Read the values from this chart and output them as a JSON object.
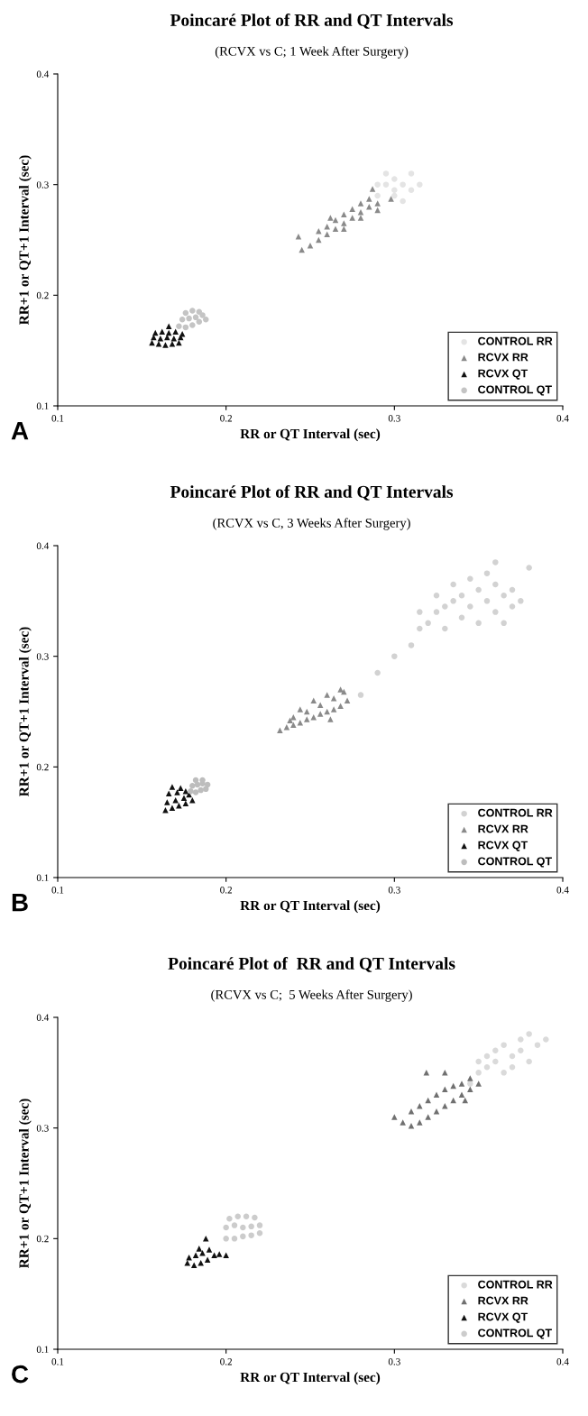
{
  "chart_data": [
    {
      "type": "scatter",
      "title": "Poincaré Plot of RR and QT Intervals",
      "subtitle": "(RCVX vs C; 1 Week After Surgery)",
      "xlabel": "RR or QT Interval (sec)",
      "ylabel": "RR+1 or QT+1 Interval (sec)",
      "xlim": [
        0.1,
        0.4
      ],
      "ylim": [
        0.1,
        0.4
      ],
      "xticks": [
        0.1,
        0.2,
        0.3,
        0.4
      ],
      "yticks": [
        0.1,
        0.2,
        0.3,
        0.4
      ],
      "legend": "bottom right",
      "grid": false,
      "annotations": [
        "A"
      ],
      "series": [
        {
          "name": "CONTROL RR",
          "color": "#e4e4e4",
          "marker": "circle",
          "x": [
            0.315,
            0.29,
            0.295,
            0.3,
            0.305,
            0.31,
            0.3,
            0.31,
            0.295,
            0.305,
            0.29,
            0.3
          ],
          "values": [
            0.3,
            0.29,
            0.3,
            0.305,
            0.3,
            0.31,
            0.295,
            0.295,
            0.31,
            0.285,
            0.3,
            0.29
          ]
        },
        {
          "name": "RCVX RR",
          "color": "#8a8a8a",
          "marker": "triangle",
          "x": [
            0.245,
            0.25,
            0.255,
            0.26,
            0.265,
            0.27,
            0.275,
            0.28,
            0.285,
            0.29,
            0.26,
            0.265,
            0.27,
            0.275,
            0.28,
            0.285,
            0.27,
            0.28,
            0.29,
            0.243,
            0.298,
            0.287,
            0.255,
            0.262
          ],
          "values": [
            0.241,
            0.245,
            0.25,
            0.255,
            0.26,
            0.265,
            0.27,
            0.275,
            0.28,
            0.283,
            0.262,
            0.268,
            0.273,
            0.278,
            0.283,
            0.287,
            0.26,
            0.27,
            0.277,
            0.253,
            0.287,
            0.296,
            0.258,
            0.27
          ]
        },
        {
          "name": "RCVX QT",
          "color": "#111111",
          "marker": "triangle",
          "x": [
            0.156,
            0.16,
            0.164,
            0.168,
            0.172,
            0.157,
            0.161,
            0.165,
            0.169,
            0.173,
            0.158,
            0.162,
            0.166,
            0.17,
            0.174,
            0.166
          ],
          "values": [
            0.157,
            0.156,
            0.155,
            0.156,
            0.157,
            0.162,
            0.161,
            0.162,
            0.161,
            0.162,
            0.166,
            0.167,
            0.166,
            0.167,
            0.165,
            0.172
          ]
        },
        {
          "name": "CONTROL QT",
          "color": "#c4c4c4",
          "marker": "circle",
          "x": [
            0.172,
            0.176,
            0.18,
            0.184,
            0.188,
            0.174,
            0.178,
            0.182,
            0.186,
            0.176,
            0.18,
            0.184
          ],
          "values": [
            0.172,
            0.171,
            0.173,
            0.176,
            0.178,
            0.178,
            0.179,
            0.18,
            0.182,
            0.184,
            0.186,
            0.185
          ]
        }
      ]
    },
    {
      "type": "scatter",
      "title": "Poincaré Plot of RR and QT Intervals",
      "subtitle": "(RCVX vs C, 3 Weeks After Surgery)",
      "xlabel": "RR or QT Interval (sec)",
      "ylabel": "RR+1 or QT+1 Interval (sec)",
      "xlim": [
        0.1,
        0.4
      ],
      "ylim": [
        0.1,
        0.4
      ],
      "xticks": [
        0.1,
        0.2,
        0.3,
        0.4
      ],
      "yticks": [
        0.1,
        0.2,
        0.3,
        0.4
      ],
      "legend": "bottom right",
      "grid": false,
      "annotations": [
        "B"
      ],
      "series": [
        {
          "name": "CONTROL RR",
          "color": "#d2d2d2",
          "marker": "circle",
          "x": [
            0.28,
            0.29,
            0.3,
            0.31,
            0.315,
            0.32,
            0.325,
            0.33,
            0.335,
            0.34,
            0.345,
            0.35,
            0.355,
            0.36,
            0.365,
            0.37,
            0.375,
            0.33,
            0.34,
            0.35,
            0.36,
            0.37,
            0.325,
            0.345,
            0.355,
            0.365,
            0.38,
            0.335,
            0.315,
            0.36
          ],
          "values": [
            0.265,
            0.285,
            0.3,
            0.31,
            0.325,
            0.33,
            0.34,
            0.345,
            0.35,
            0.355,
            0.345,
            0.36,
            0.35,
            0.34,
            0.355,
            0.345,
            0.35,
            0.325,
            0.335,
            0.33,
            0.365,
            0.36,
            0.355,
            0.37,
            0.375,
            0.33,
            0.38,
            0.365,
            0.34,
            0.385
          ]
        },
        {
          "name": "RCVX RR",
          "color": "#8a8a8a",
          "marker": "triangle",
          "x": [
            0.232,
            0.236,
            0.24,
            0.244,
            0.248,
            0.252,
            0.256,
            0.26,
            0.264,
            0.268,
            0.272,
            0.24,
            0.248,
            0.256,
            0.264,
            0.27,
            0.244,
            0.252,
            0.26,
            0.268,
            0.238,
            0.262
          ],
          "values": [
            0.233,
            0.236,
            0.238,
            0.24,
            0.243,
            0.245,
            0.248,
            0.25,
            0.252,
            0.255,
            0.26,
            0.245,
            0.25,
            0.256,
            0.262,
            0.268,
            0.252,
            0.26,
            0.265,
            0.27,
            0.242,
            0.243
          ]
        },
        {
          "name": "RCVX QT",
          "color": "#111111",
          "marker": "triangle",
          "x": [
            0.164,
            0.168,
            0.172,
            0.176,
            0.18,
            0.165,
            0.17,
            0.175,
            0.166,
            0.171,
            0.176,
            0.168,
            0.173,
            0.178
          ],
          "values": [
            0.161,
            0.163,
            0.165,
            0.167,
            0.17,
            0.168,
            0.17,
            0.172,
            0.176,
            0.177,
            0.178,
            0.182,
            0.181,
            0.175
          ]
        },
        {
          "name": "CONTROL QT",
          "color": "#bdbdbd",
          "marker": "circle",
          "x": [
            0.179,
            0.182,
            0.185,
            0.188,
            0.18,
            0.183,
            0.186,
            0.189,
            0.182,
            0.186
          ],
          "values": [
            0.178,
            0.177,
            0.179,
            0.18,
            0.183,
            0.184,
            0.185,
            0.184,
            0.188,
            0.188
          ]
        }
      ]
    },
    {
      "type": "scatter",
      "title": "Poincaré Plot of  RR and QT Intervals",
      "subtitle": "(RCVX vs C;  5 Weeks After Surgery)",
      "xlabel": "RR or QT Interval (sec)",
      "ylabel": "RR+1 or QT+1 Interval (sec)",
      "xlim": [
        0.1,
        0.4
      ],
      "ylim": [
        0.1,
        0.4
      ],
      "xticks": [
        0.1,
        0.2,
        0.3,
        0.4
      ],
      "yticks": [
        0.1,
        0.2,
        0.3,
        0.4
      ],
      "legend": "bottom right",
      "grid": false,
      "annotations": [
        "C"
      ],
      "series": [
        {
          "name": "CONTROL RR",
          "color": "#dadada",
          "marker": "circle",
          "x": [
            0.345,
            0.35,
            0.355,
            0.36,
            0.365,
            0.37,
            0.375,
            0.38,
            0.355,
            0.365,
            0.375,
            0.36,
            0.37,
            0.385,
            0.39,
            0.35,
            0.38
          ],
          "values": [
            0.34,
            0.35,
            0.355,
            0.36,
            0.35,
            0.365,
            0.37,
            0.36,
            0.365,
            0.375,
            0.38,
            0.37,
            0.355,
            0.375,
            0.38,
            0.36,
            0.385
          ]
        },
        {
          "name": "RCVX RR",
          "color": "#707070",
          "marker": "triangle",
          "x": [
            0.3,
            0.305,
            0.31,
            0.315,
            0.32,
            0.325,
            0.33,
            0.335,
            0.34,
            0.345,
            0.35,
            0.31,
            0.32,
            0.33,
            0.34,
            0.315,
            0.325,
            0.335,
            0.345,
            0.319,
            0.33,
            0.342
          ],
          "values": [
            0.31,
            0.305,
            0.302,
            0.305,
            0.31,
            0.315,
            0.32,
            0.325,
            0.33,
            0.335,
            0.34,
            0.315,
            0.325,
            0.335,
            0.34,
            0.32,
            0.33,
            0.338,
            0.345,
            0.35,
            0.35,
            0.325
          ]
        },
        {
          "name": "RCVX QT",
          "color": "#111111",
          "marker": "triangle",
          "x": [
            0.177,
            0.181,
            0.185,
            0.189,
            0.193,
            0.178,
            0.182,
            0.186,
            0.19,
            0.184,
            0.188,
            0.2,
            0.196
          ],
          "values": [
            0.178,
            0.176,
            0.178,
            0.181,
            0.185,
            0.183,
            0.185,
            0.187,
            0.19,
            0.191,
            0.2,
            0.185,
            0.186
          ]
        },
        {
          "name": "CONTROL QT",
          "color": "#cccccc",
          "marker": "circle",
          "x": [
            0.2,
            0.205,
            0.21,
            0.215,
            0.22,
            0.2,
            0.205,
            0.21,
            0.215,
            0.22,
            0.202,
            0.207,
            0.212,
            0.217
          ],
          "values": [
            0.2,
            0.2,
            0.202,
            0.203,
            0.205,
            0.21,
            0.212,
            0.21,
            0.211,
            0.212,
            0.218,
            0.22,
            0.22,
            0.219
          ]
        }
      ]
    }
  ]
}
